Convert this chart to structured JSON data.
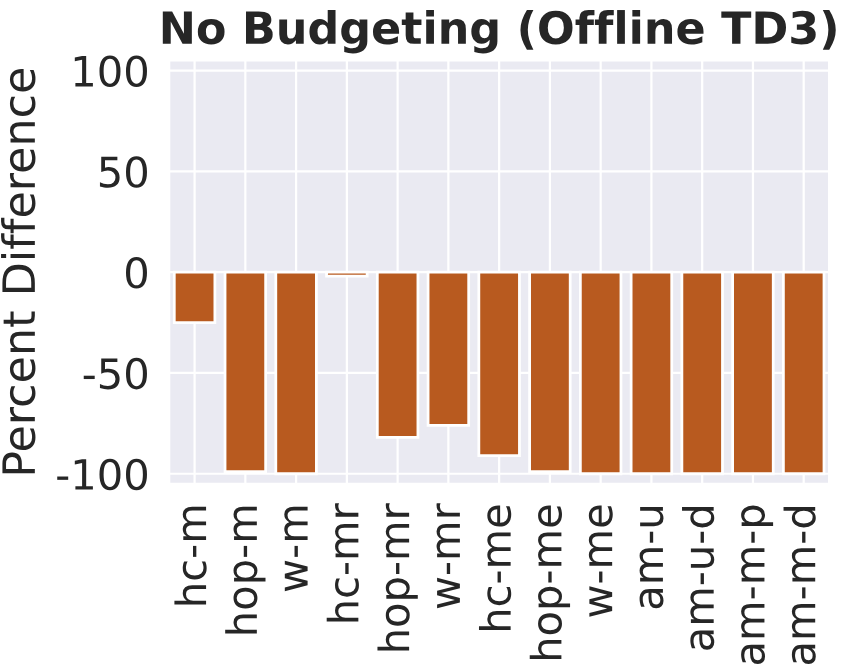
{
  "chart_data": {
    "type": "bar",
    "title": "No Budgeting (Offline TD3)",
    "ylabel": "Percent Difference",
    "categories": [
      "hc-m",
      "hop-m",
      "w-m",
      "hc-mr",
      "hop-mr",
      "w-mr",
      "hc-me",
      "hop-me",
      "w-me",
      "am-u",
      "am-u-d",
      "am-m-p",
      "am-m-d"
    ],
    "values": [
      -25,
      -99,
      -100,
      -2,
      -82,
      -76,
      -91,
      -99,
      -100,
      -100,
      -100,
      -100,
      -100
    ],
    "color": "#b85a1f",
    "ylim": [
      -105,
      105
    ],
    "yticks": [
      100,
      50,
      0,
      -50,
      -100
    ],
    "grid": true
  }
}
